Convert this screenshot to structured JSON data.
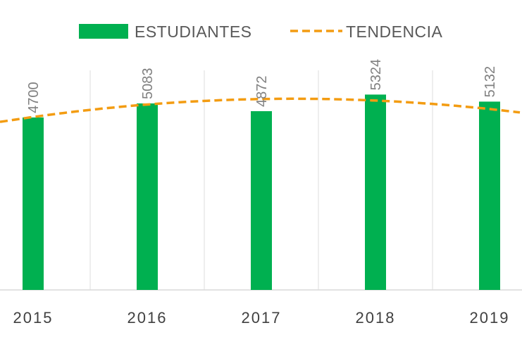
{
  "chart_data": {
    "type": "bar",
    "categories": [
      "2015",
      "2016",
      "2017",
      "2018",
      "2019"
    ],
    "series": [
      {
        "name": "ESTUDIANTES",
        "type": "bar",
        "values": [
          4700,
          5083,
          4872,
          5324,
          5132
        ],
        "color": "#00b050"
      },
      {
        "name": "TENDENCIA",
        "type": "line",
        "style": "dashed",
        "values": [
          4713,
          5053,
          5202,
          5161,
          4930
        ],
        "color": "#f39c12"
      }
    ],
    "title": "",
    "xlabel": "",
    "ylabel": "",
    "ylim": [
      0,
      5600
    ],
    "grid": "vertical",
    "legend": "top",
    "data_labels": true
  }
}
